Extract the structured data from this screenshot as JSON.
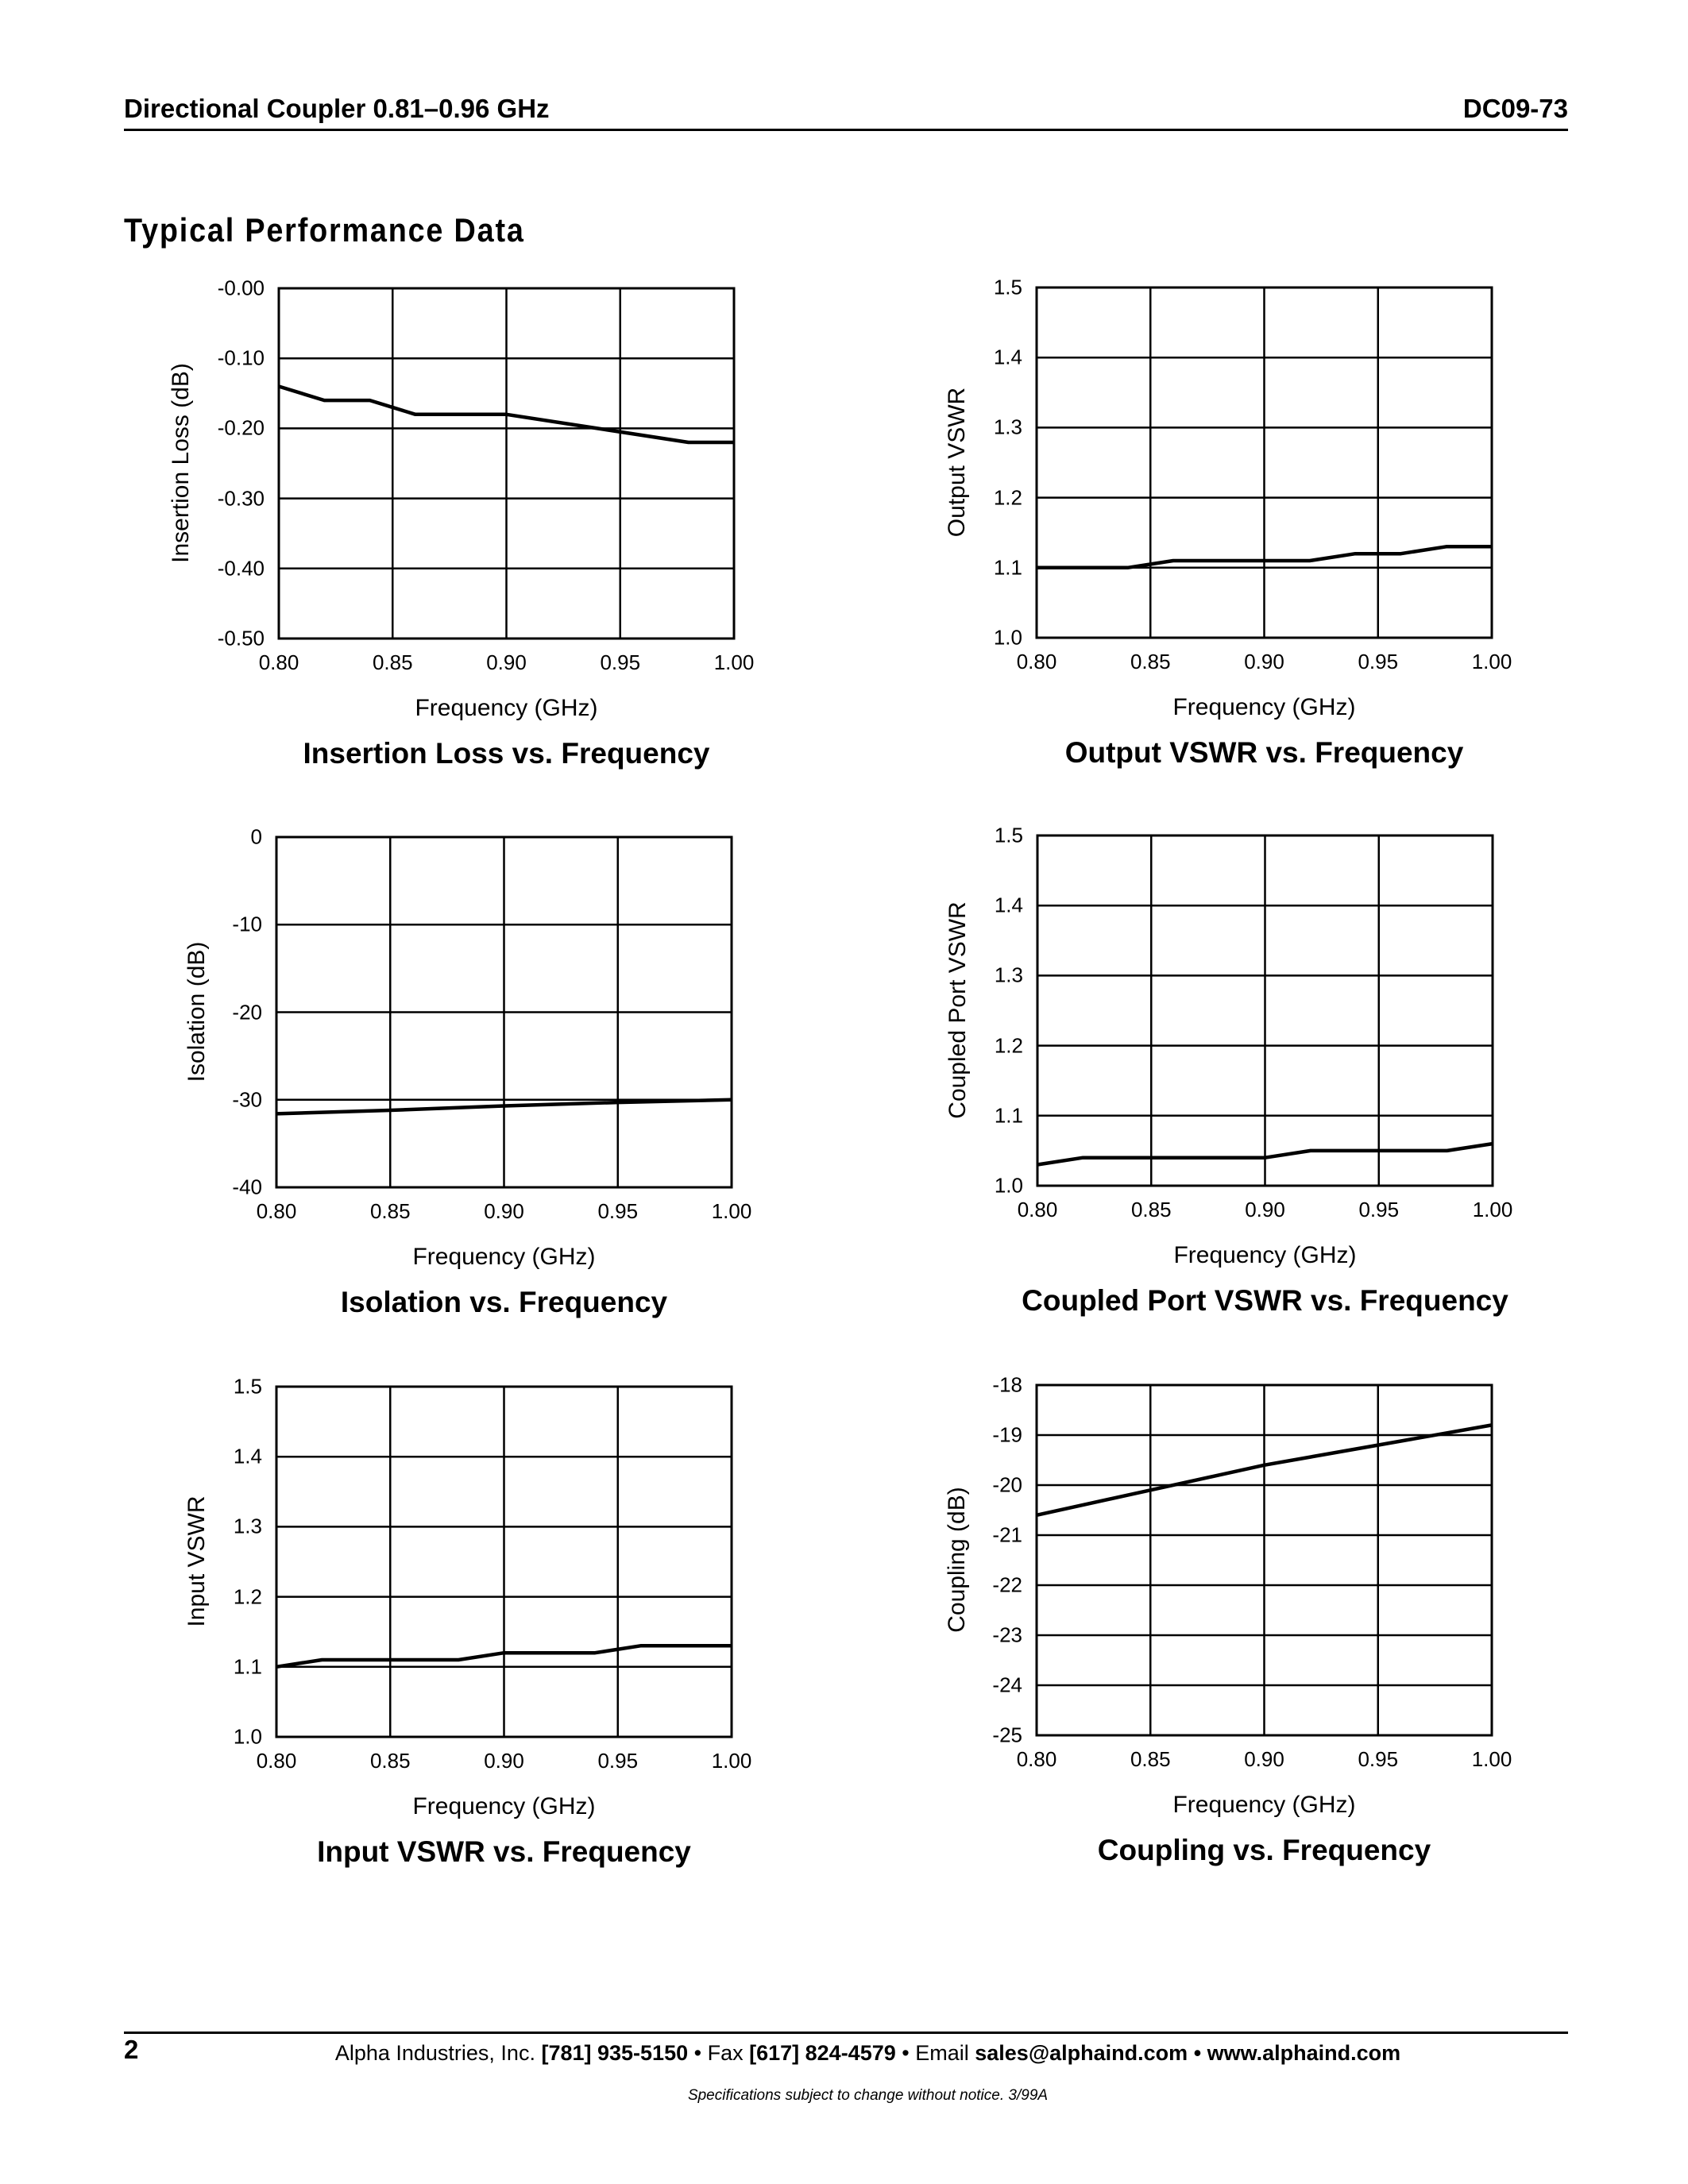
{
  "header": {
    "title": "Directional Coupler 0.81–0.96 GHz",
    "part_number": "DC09-73"
  },
  "section_title": "Typical Performance Data",
  "footer": {
    "page_number": "2",
    "company": "Alpha Industries, Inc.",
    "phone": "[781] 935-5150",
    "fax_label": "• Fax",
    "fax": "[617] 824-4579",
    "email_label": "• Email",
    "email": "sales@alphaind.com",
    "sep": "•",
    "website": "www.alphaind.com",
    "note": "Specifications subject to change without notice.  3/99A"
  },
  "chart_data": [
    {
      "type": "line",
      "title": "Insertion Loss vs. Frequency",
      "xlabel": "Frequency (GHz)",
      "ylabel": "Insertion Loss (dB)",
      "xlim": [
        0.8,
        1.0
      ],
      "ylim": [
        -0.5,
        0.0
      ],
      "grid": true,
      "xticks": [
        "0.80",
        "0.85",
        "0.90",
        "0.95",
        "1.00"
      ],
      "yticks": [
        "-0.00",
        "-0.10",
        "-0.20",
        "-0.30",
        "-0.40",
        "-0.50"
      ],
      "x": [
        0.8,
        0.82,
        0.84,
        0.86,
        0.9,
        0.98,
        1.0
      ],
      "y": [
        -0.14,
        -0.16,
        -0.16,
        -0.18,
        -0.18,
        -0.22,
        -0.22
      ]
    },
    {
      "type": "line",
      "title": "Output VSWR vs. Frequency",
      "xlabel": "Frequency (GHz)",
      "ylabel": "Output VSWR",
      "xlim": [
        0.8,
        1.0
      ],
      "ylim": [
        1.0,
        1.5
      ],
      "grid": true,
      "xticks": [
        "0.80",
        "0.85",
        "0.90",
        "0.95",
        "1.00"
      ],
      "yticks": [
        "1.5",
        "1.4",
        "1.3",
        "1.2",
        "1.1",
        "1.0"
      ],
      "x": [
        0.8,
        0.84,
        0.86,
        0.92,
        0.94,
        0.96,
        0.98,
        1.0
      ],
      "y": [
        1.1,
        1.1,
        1.11,
        1.11,
        1.12,
        1.12,
        1.13,
        1.13
      ]
    },
    {
      "type": "line",
      "title": "Isolation vs. Frequency",
      "xlabel": "Frequency (GHz)",
      "ylabel": "Isolation (dB)",
      "xlim": [
        0.8,
        1.0
      ],
      "ylim": [
        -40,
        0
      ],
      "grid": true,
      "xticks": [
        "0.80",
        "0.85",
        "0.90",
        "0.95",
        "1.00"
      ],
      "yticks": [
        "0",
        "-10",
        "-20",
        "-30",
        "-40"
      ],
      "x": [
        0.8,
        0.85,
        0.9,
        0.95,
        1.0
      ],
      "y": [
        -31.6,
        -31.2,
        -30.7,
        -30.3,
        -30.0
      ]
    },
    {
      "type": "line",
      "title": "Coupled Port VSWR vs. Frequency",
      "xlabel": "Frequency (GHz)",
      "ylabel": "Coupled Port VSWR",
      "xlim": [
        0.8,
        1.0
      ],
      "ylim": [
        1.0,
        1.5
      ],
      "grid": true,
      "xticks": [
        "0.80",
        "0.85",
        "0.90",
        "0.95",
        "1.00"
      ],
      "yticks": [
        "1.5",
        "1.4",
        "1.3",
        "1.2",
        "1.1",
        "1.0"
      ],
      "x": [
        0.8,
        0.82,
        0.9,
        0.92,
        0.98,
        1.0
      ],
      "y": [
        1.03,
        1.04,
        1.04,
        1.05,
        1.05,
        1.06
      ]
    },
    {
      "type": "line",
      "title": "Input VSWR vs. Frequency",
      "xlabel": "Frequency (GHz)",
      "ylabel": "Input VSWR",
      "xlim": [
        0.8,
        1.0
      ],
      "ylim": [
        1.0,
        1.5
      ],
      "grid": true,
      "xticks": [
        "0.80",
        "0.85",
        "0.90",
        "0.95",
        "1.00"
      ],
      "yticks": [
        "1.5",
        "1.4",
        "1.3",
        "1.2",
        "1.1",
        "1.0"
      ],
      "x": [
        0.8,
        0.82,
        0.88,
        0.9,
        0.94,
        0.96,
        1.0
      ],
      "y": [
        1.1,
        1.11,
        1.11,
        1.12,
        1.12,
        1.13,
        1.13
      ]
    },
    {
      "type": "line",
      "title": "Coupling vs. Frequency",
      "xlabel": "Frequency (GHz)",
      "ylabel": "Coupling (dB)",
      "xlim": [
        0.8,
        1.0
      ],
      "ylim": [
        -25,
        -18
      ],
      "grid": true,
      "xticks": [
        "0.80",
        "0.85",
        "0.90",
        "0.95",
        "1.00"
      ],
      "yticks": [
        "-18",
        "-19",
        "-20",
        "-21",
        "-22",
        "-23",
        "-24",
        "-25"
      ],
      "x": [
        0.8,
        0.85,
        0.88,
        0.9,
        0.95,
        1.0
      ],
      "y": [
        -20.6,
        -20.1,
        -19.8,
        -19.6,
        -19.2,
        -18.8
      ]
    }
  ]
}
